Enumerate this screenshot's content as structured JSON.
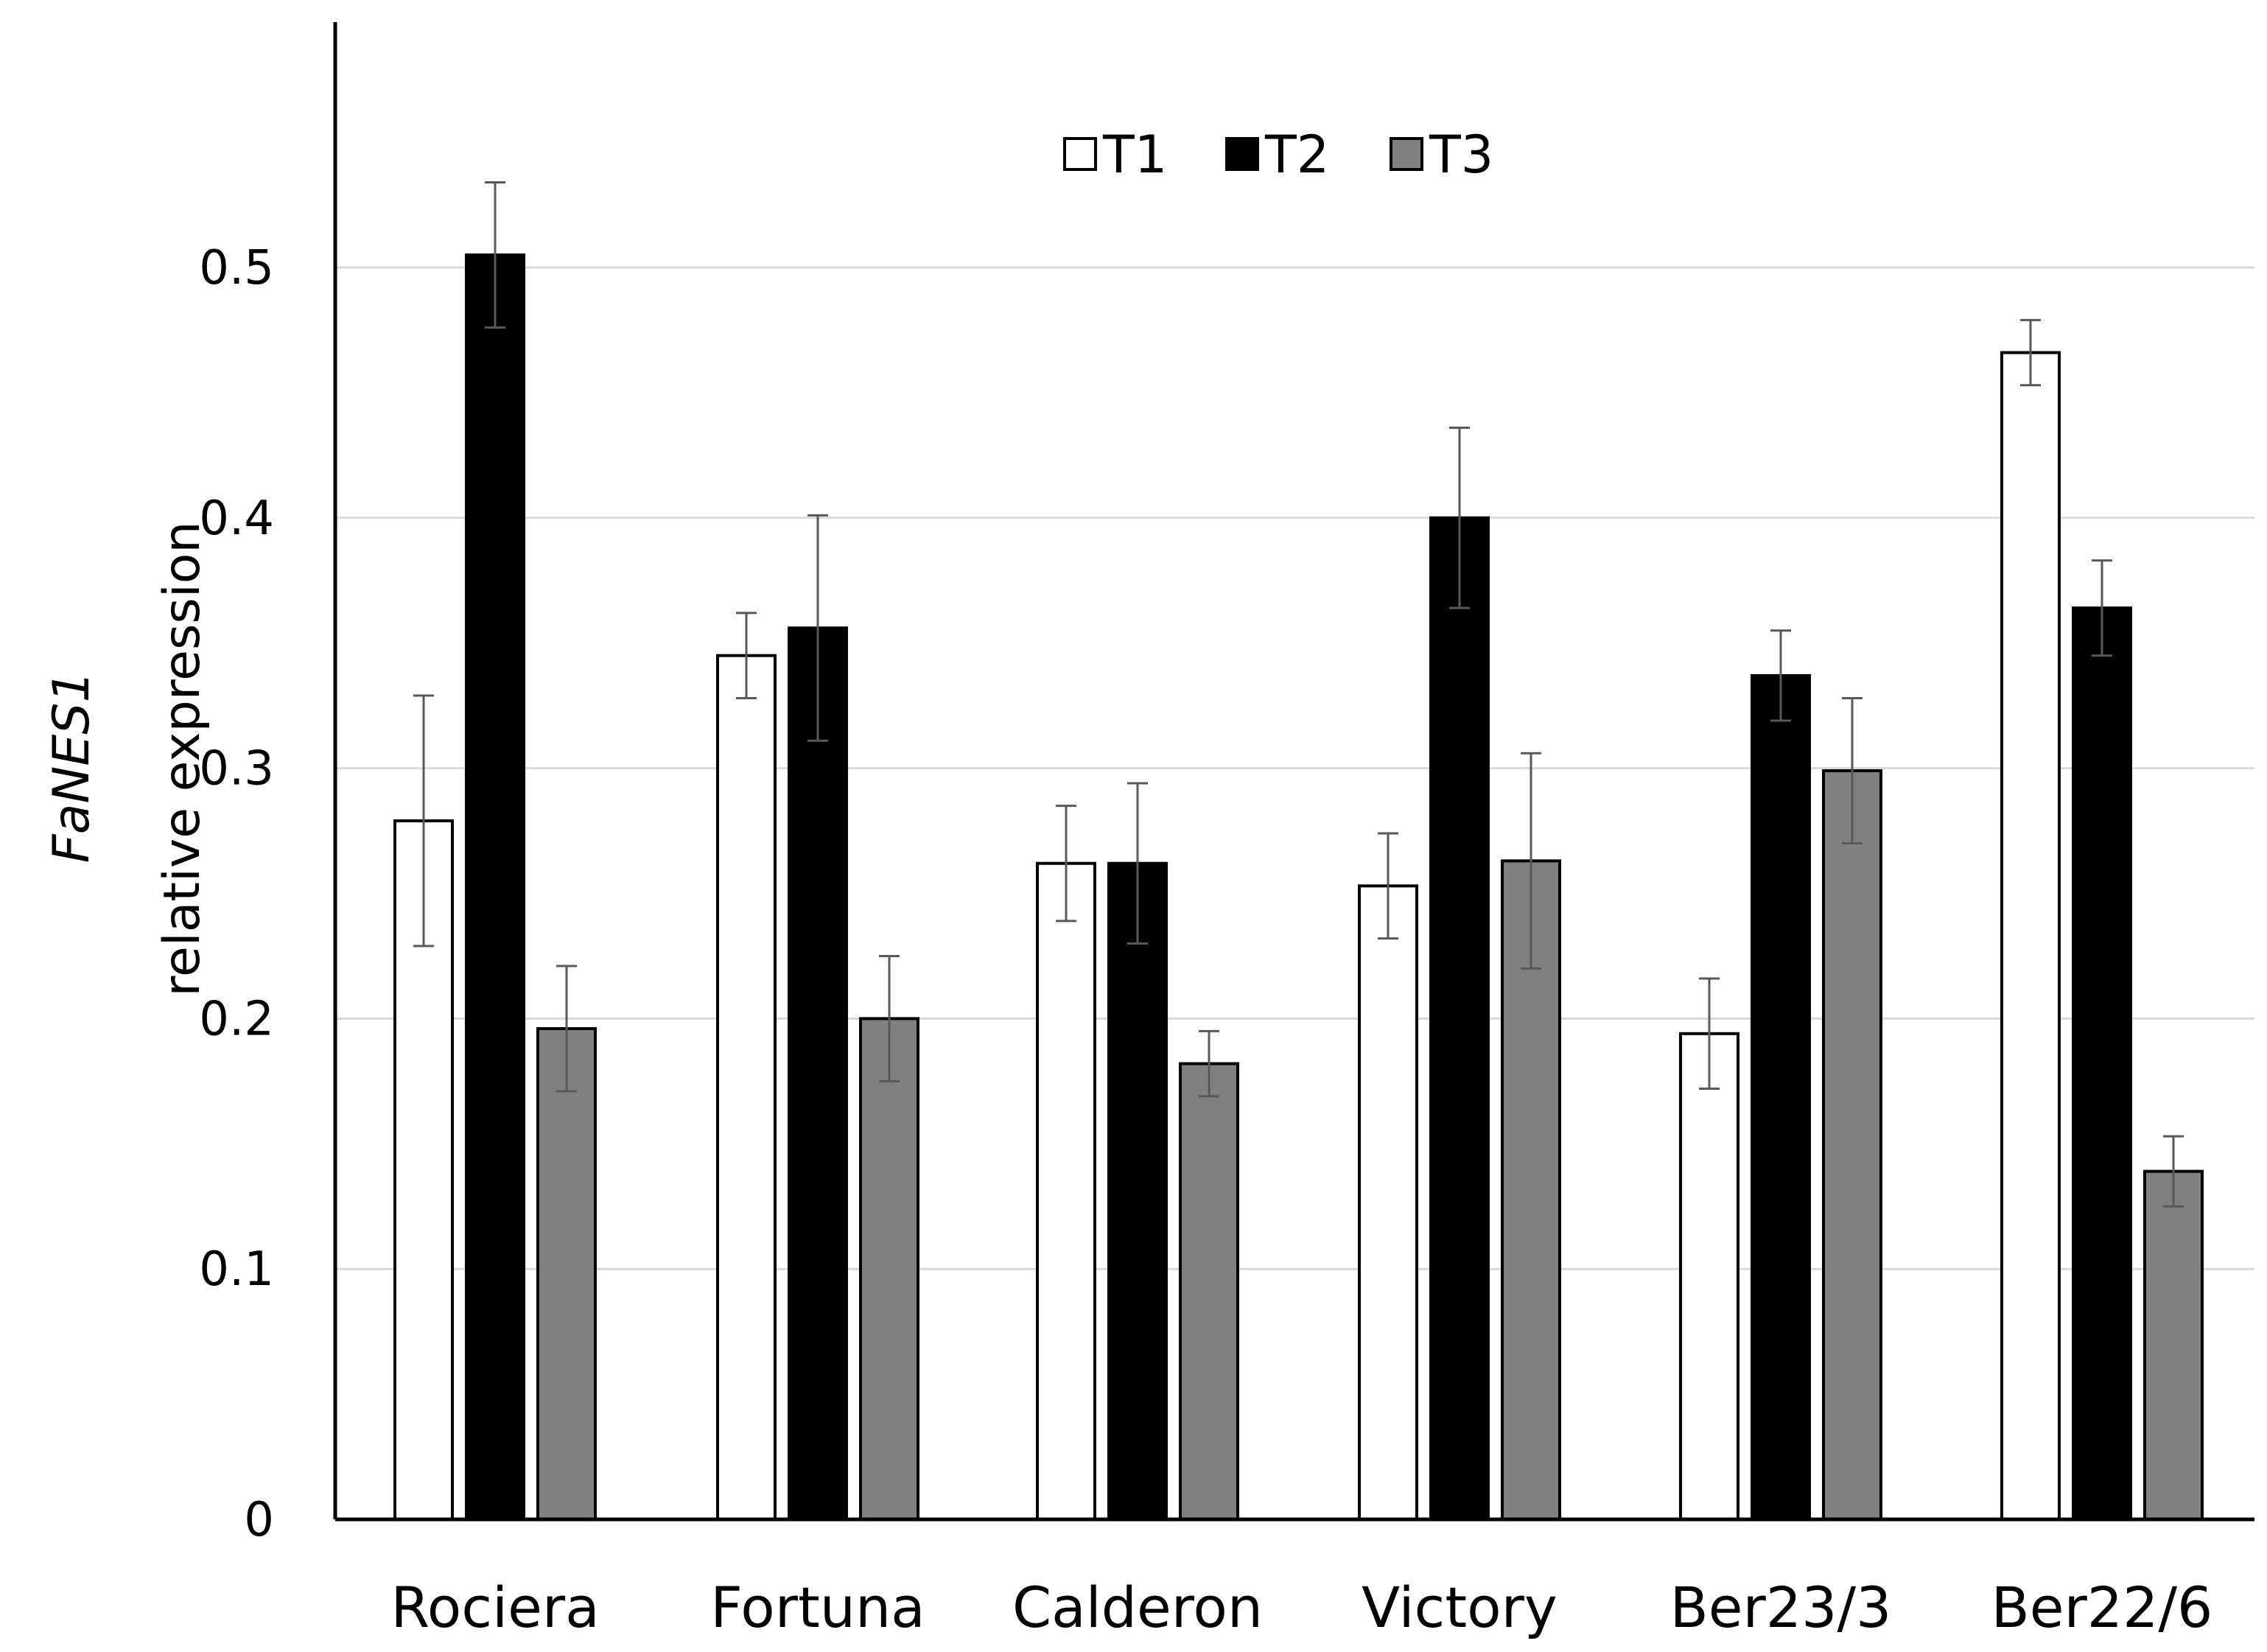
{
  "chart_data": {
    "type": "bar",
    "title": "",
    "xlabel": "",
    "ylabel_gene": "FaNES1",
    "ylabel_text": "relative expression",
    "ylim": [
      0,
      0.6
    ],
    "yticks": [
      0,
      0.1,
      0.2,
      0.3,
      0.4,
      0.5
    ],
    "ytick_labels": [
      "0",
      "0.1",
      "0.2",
      "0.3",
      "0.4",
      "0.5"
    ],
    "grid": true,
    "legend_position": "top-center",
    "categories": [
      "Rociera",
      "Fortuna",
      "Calderon",
      "Victory",
      "Ber23/3",
      "Ber22/6"
    ],
    "series": [
      {
        "name": "T1",
        "color": "#ffffff",
        "values": [
          0.279,
          0.345,
          0.262,
          0.253,
          0.194,
          0.466
        ],
        "errors": [
          0.05,
          0.017,
          0.023,
          0.021,
          0.022,
          0.013
        ]
      },
      {
        "name": "T2",
        "color": "#000000",
        "values": [
          0.505,
          0.356,
          0.262,
          0.4,
          0.337,
          0.364
        ],
        "errors": [
          0.029,
          0.045,
          0.032,
          0.036,
          0.018,
          0.019
        ]
      },
      {
        "name": "T3",
        "color": "#808080",
        "values": [
          0.196,
          0.2,
          0.182,
          0.263,
          0.299,
          0.139
        ],
        "errors": [
          0.025,
          0.025,
          0.013,
          0.043,
          0.029,
          0.014
        ]
      }
    ]
  }
}
